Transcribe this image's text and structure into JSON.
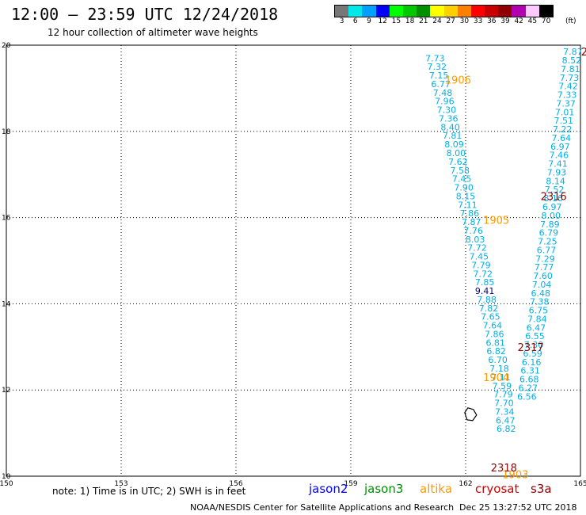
{
  "header": {
    "title": "12:00 – 23:59 UTC 12/24/2018",
    "subtitle": "12 hour collection of altimeter wave heights"
  },
  "colorbar": {
    "colors": [
      "#777777",
      "#00e8e8",
      "#00a0ff",
      "#0000ff",
      "#00ff00",
      "#00c800",
      "#009000",
      "#ffff00",
      "#ffd000",
      "#ff8000",
      "#ff0000",
      "#c80000",
      "#900000",
      "#b000b0",
      "#ffc8ff",
      "#000000"
    ],
    "labels": [
      "3",
      "6",
      "9",
      "12",
      "15",
      "18",
      "21",
      "24",
      "27",
      "30",
      "33",
      "36",
      "39",
      "42",
      "45",
      "70"
    ],
    "unit": "(ft)"
  },
  "chart_data": {
    "type": "scatter",
    "title": "12:00 – 23:59 UTC 12/24/2018",
    "subtitle": "12 hour collection of altimeter wave heights",
    "xlabel": "",
    "ylabel": "",
    "xlim": [
      150,
      165
    ],
    "ylim": [
      10,
      20
    ],
    "x_ticks": [
      "150",
      "153",
      "156",
      "159",
      "162",
      "165"
    ],
    "y_ticks": [
      "10",
      "12",
      "14",
      "16",
      "18",
      "20"
    ],
    "grid": true,
    "passes": [
      {
        "id": "1906",
        "color": "#ff9900",
        "label_pos": [
          161.8,
          19.2
        ]
      },
      {
        "id": "1905",
        "color": "#ff9900",
        "label_pos": [
          162.8,
          15.95
        ]
      },
      {
        "id": "1904",
        "color": "#ff9900",
        "label_pos": [
          162.8,
          12.3
        ]
      },
      {
        "id": "1903",
        "color": "#ff9900",
        "label_pos": [
          163.3,
          10.05
        ]
      },
      {
        "id": "2316",
        "color": "#8b0000",
        "label_pos": [
          164.3,
          16.5
        ]
      },
      {
        "id": "2317",
        "color": "#8b0000",
        "label_pos": [
          163.7,
          13.0
        ]
      },
      {
        "id": "2318",
        "color": "#8b0000",
        "label_pos": [
          163.0,
          10.2
        ]
      },
      {
        "id": "2",
        "color": "#8b0000",
        "label_pos": [
          165.1,
          19.85
        ]
      }
    ],
    "series": [
      {
        "name": "altika",
        "color": "#00b0e8",
        "points": [
          [
            161.2,
            19.7,
            "7.73"
          ],
          [
            161.25,
            19.5,
            "7.32"
          ],
          [
            161.3,
            19.3,
            "7.15"
          ],
          [
            161.35,
            19.1,
            "6.77"
          ],
          [
            161.4,
            18.9,
            "7.48"
          ],
          [
            161.45,
            18.7,
            "7.96"
          ],
          [
            161.5,
            18.5,
            "7.30"
          ],
          [
            161.55,
            18.3,
            "7.36"
          ],
          [
            161.6,
            18.1,
            "8.40"
          ],
          [
            161.65,
            17.9,
            "7.81"
          ],
          [
            161.7,
            17.7,
            "8.09"
          ],
          [
            161.75,
            17.5,
            "8.00"
          ],
          [
            161.8,
            17.3,
            "7.62"
          ],
          [
            161.85,
            17.1,
            "7.58"
          ],
          [
            161.9,
            16.9,
            "7.45"
          ],
          [
            161.95,
            16.7,
            "7.90"
          ],
          [
            162.0,
            16.5,
            "8.15"
          ],
          [
            162.05,
            16.3,
            "7.11"
          ],
          [
            162.1,
            16.1,
            "7.86"
          ],
          [
            162.15,
            15.9,
            "7.87"
          ],
          [
            162.2,
            15.7,
            "7.76"
          ],
          [
            162.25,
            15.5,
            "8.03"
          ],
          [
            162.3,
            15.3,
            "7.72"
          ],
          [
            162.35,
            15.1,
            "7.45"
          ],
          [
            162.4,
            14.9,
            "7.79"
          ],
          [
            162.45,
            14.7,
            "7.72"
          ],
          [
            162.5,
            14.5,
            "7.85"
          ],
          [
            162.5,
            14.3,
            "9.41"
          ],
          [
            162.55,
            14.1,
            "7.88"
          ],
          [
            162.6,
            13.9,
            "7.82"
          ],
          [
            162.65,
            13.7,
            "7.65"
          ],
          [
            162.7,
            13.5,
            "7.64"
          ],
          [
            162.75,
            13.3,
            "7.86"
          ],
          [
            162.78,
            13.1,
            "6.81"
          ],
          [
            162.8,
            12.9,
            "6.82"
          ],
          [
            162.84,
            12.7,
            "6.70"
          ],
          [
            162.88,
            12.5,
            "7.18"
          ],
          [
            162.92,
            12.3,
            "7.11"
          ],
          [
            162.95,
            12.1,
            "7.59"
          ],
          [
            162.98,
            11.9,
            "7.79"
          ],
          [
            163.0,
            11.7,
            "7.70"
          ],
          [
            163.02,
            11.5,
            "7.34"
          ],
          [
            163.04,
            11.3,
            "6.47"
          ],
          [
            163.06,
            11.1,
            "6.82"
          ]
        ]
      },
      {
        "name": "altika",
        "color": "#00b0e8",
        "points": [
          [
            164.8,
            19.85,
            "7.87"
          ],
          [
            164.77,
            19.65,
            "8.52"
          ],
          [
            164.74,
            19.45,
            "7.81"
          ],
          [
            164.71,
            19.25,
            "7.73"
          ],
          [
            164.68,
            19.05,
            "7.42"
          ],
          [
            164.65,
            18.85,
            "7.33"
          ],
          [
            164.62,
            18.65,
            "7.37"
          ],
          [
            164.59,
            18.45,
            "7.01"
          ],
          [
            164.56,
            18.25,
            "7.51"
          ],
          [
            164.53,
            18.05,
            "7.22"
          ],
          [
            164.5,
            17.85,
            "7.64"
          ],
          [
            164.47,
            17.65,
            "6.97"
          ],
          [
            164.44,
            17.45,
            "7.46"
          ],
          [
            164.41,
            17.25,
            "7.41"
          ],
          [
            164.38,
            17.05,
            "7.93"
          ],
          [
            164.35,
            16.85,
            "8.14"
          ],
          [
            164.32,
            16.65,
            "7.52"
          ],
          [
            164.29,
            16.45,
            "8.16"
          ],
          [
            164.26,
            16.25,
            "6.97"
          ],
          [
            164.23,
            16.05,
            "8.00"
          ],
          [
            164.2,
            15.85,
            "7.89"
          ],
          [
            164.17,
            15.65,
            "6.79"
          ],
          [
            164.14,
            15.45,
            "7.25"
          ],
          [
            164.11,
            15.25,
            "6.77"
          ],
          [
            164.08,
            15.05,
            "7.29"
          ],
          [
            164.05,
            14.85,
            "7.77"
          ],
          [
            164.02,
            14.65,
            "7.60"
          ],
          [
            163.99,
            14.45,
            "7.04"
          ],
          [
            163.96,
            14.25,
            "6.48"
          ],
          [
            163.93,
            14.05,
            "7.38"
          ],
          [
            163.9,
            13.85,
            "6.75"
          ],
          [
            163.87,
            13.65,
            "7.84"
          ],
          [
            163.84,
            13.45,
            "6.47"
          ],
          [
            163.81,
            13.25,
            "6.55"
          ],
          [
            163.78,
            13.05,
            "7.30"
          ],
          [
            163.75,
            12.85,
            "6.59"
          ],
          [
            163.72,
            12.65,
            "6.16"
          ],
          [
            163.69,
            12.45,
            "6.31"
          ],
          [
            163.66,
            12.25,
            "6.68"
          ],
          [
            163.63,
            12.05,
            "6.27"
          ],
          [
            163.6,
            11.85,
            "6.56"
          ]
        ]
      }
    ]
  },
  "footer": {
    "note": "note: 1) Time is in UTC; 2) SWH is in feet",
    "legend": [
      {
        "label": "jason2",
        "color": "#0000ff"
      },
      {
        "label": "jason3",
        "color": "#009000"
      },
      {
        "label": "altika",
        "color": "#ff9900"
      },
      {
        "label": "cryosat",
        "color": "#c80000"
      },
      {
        "label": "s3a",
        "color": "#8b0000"
      }
    ],
    "credit": "NOAA/NESDIS Center for Satellite Applications and Research",
    "timestamp": "Dec 25 13:27:52 UTC 2018"
  }
}
